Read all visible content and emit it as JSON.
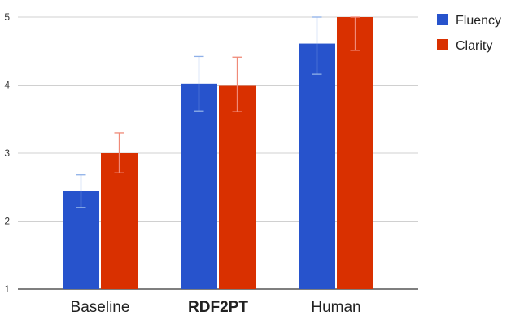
{
  "chart_data": {
    "type": "bar",
    "categories": [
      "Baseline",
      "RDF2PT",
      "Human"
    ],
    "bold_categories": [
      "RDF2PT"
    ],
    "series": [
      {
        "name": "Fluency",
        "color": "#2753cc",
        "values": [
          2.44,
          4.02,
          4.61
        ],
        "err_low": [
          2.2,
          3.62,
          4.16
        ],
        "err_high": [
          2.68,
          4.42,
          5.0
        ]
      },
      {
        "name": "Clarity",
        "color": "#d93000",
        "values": [
          3.0,
          4.0,
          5.0
        ],
        "err_low": [
          2.71,
          3.61,
          4.51
        ],
        "err_high": [
          3.3,
          4.41,
          5.0
        ]
      }
    ],
    "y_ticks": [
      1,
      2,
      3,
      4,
      5
    ],
    "ylim": [
      1,
      5
    ],
    "grid": true,
    "legend_position": "top-right"
  }
}
